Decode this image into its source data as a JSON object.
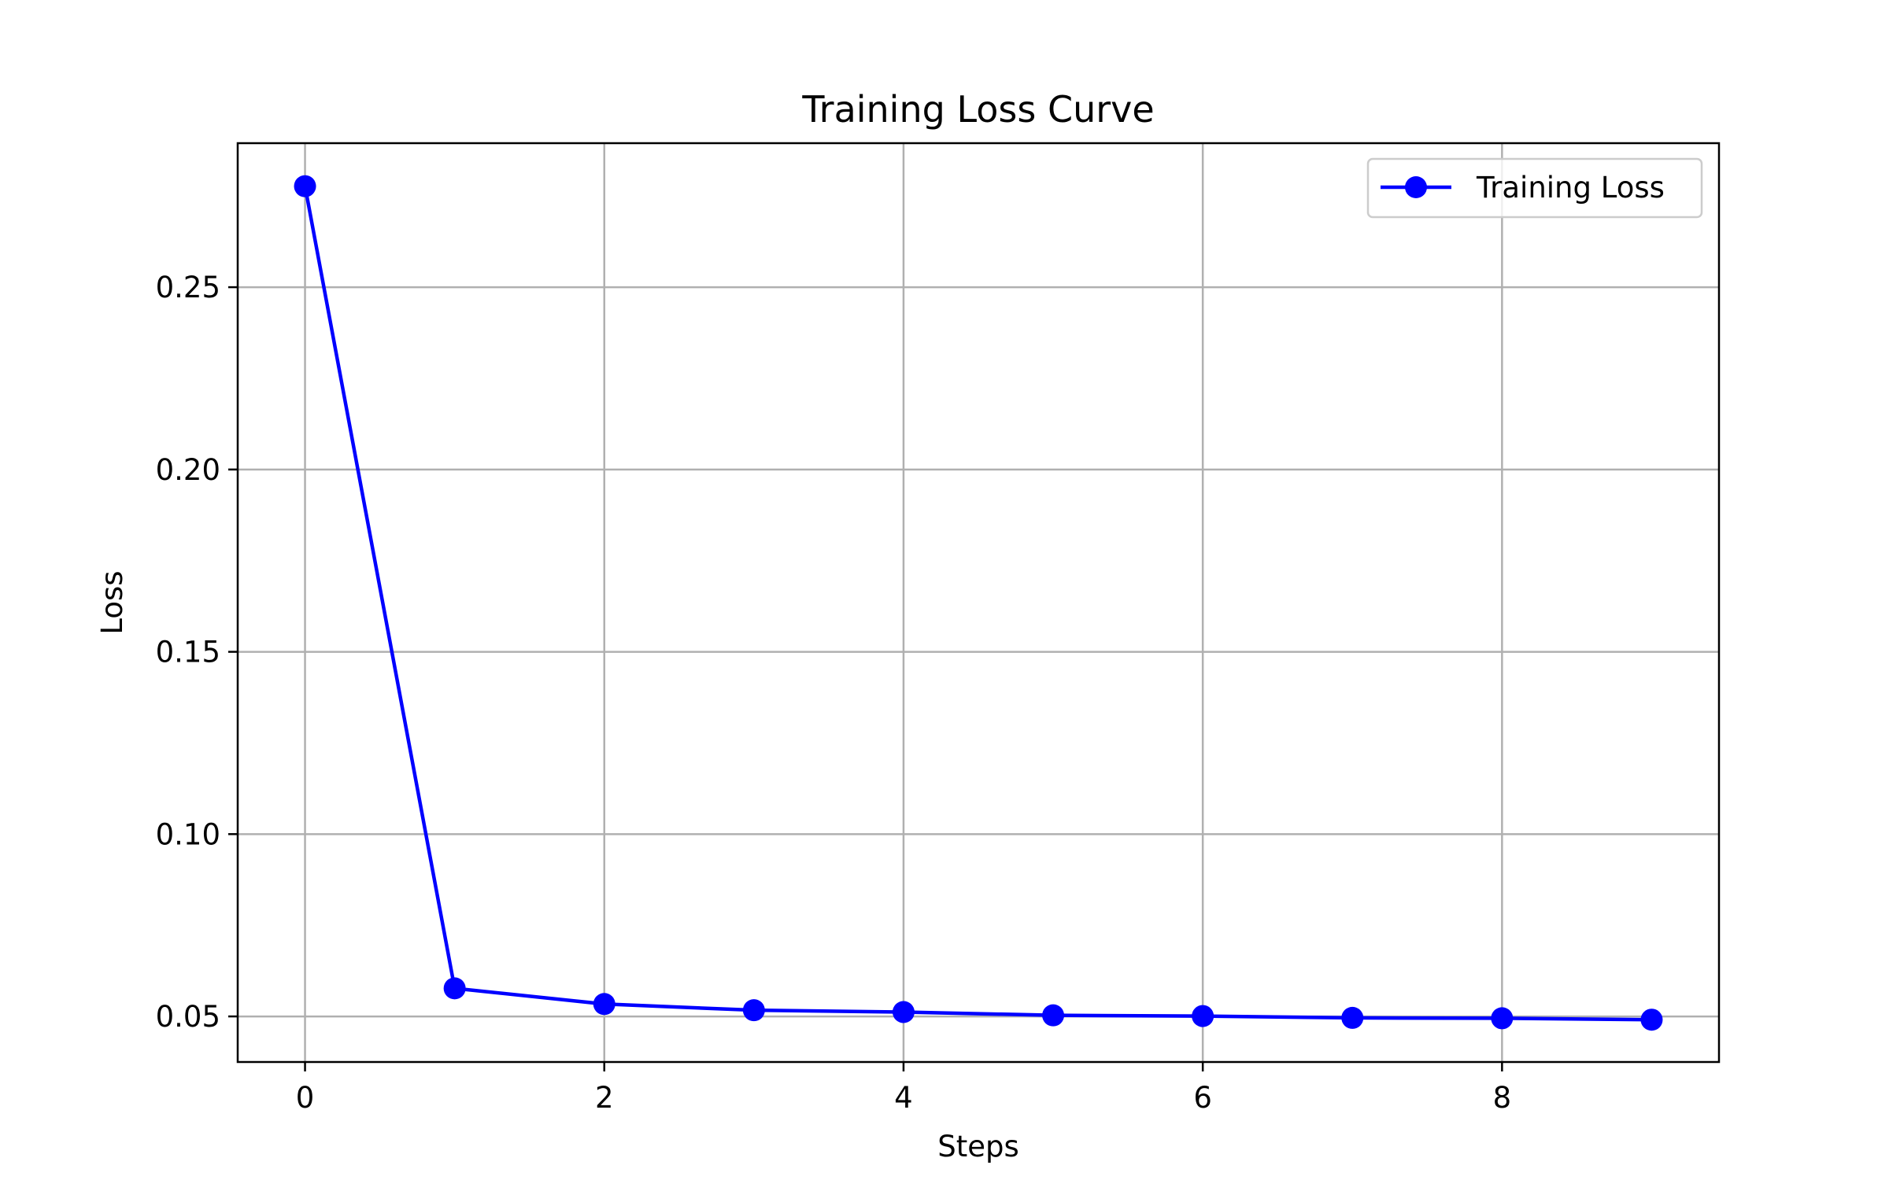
{
  "chart_data": {
    "type": "line",
    "title": "Training Loss Curve",
    "xlabel": "Steps",
    "ylabel": "Loss",
    "x": [
      0,
      1,
      2,
      3,
      4,
      5,
      6,
      7,
      8,
      9
    ],
    "series": [
      {
        "name": "Training Loss",
        "values": [
          0.2777,
          0.0577,
          0.0534,
          0.0517,
          0.0512,
          0.0503,
          0.0501,
          0.0496,
          0.0495,
          0.0491
        ],
        "color": "#0000ff",
        "marker": "circle"
      }
    ],
    "xlim": [
      -0.45,
      9.45
    ],
    "ylim": [
      0.0375,
      0.2895
    ],
    "xticks": [
      0,
      2,
      4,
      6,
      8
    ],
    "xtick_labels": [
      "0",
      "2",
      "4",
      "6",
      "8"
    ],
    "yticks": [
      0.05,
      0.1,
      0.15,
      0.2,
      0.25
    ],
    "ytick_labels": [
      "0.05",
      "0.10",
      "0.15",
      "0.20",
      "0.25"
    ],
    "grid": true,
    "grid_color": "#b0b0b0",
    "legend_position": "top-right"
  }
}
